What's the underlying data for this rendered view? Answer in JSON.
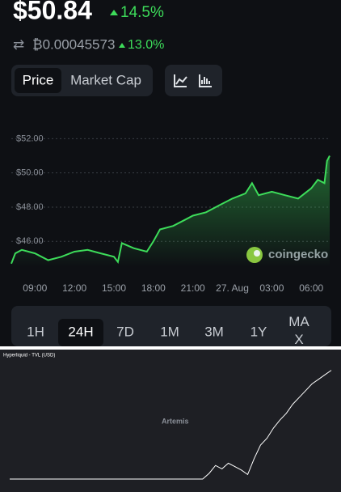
{
  "header": {
    "price": "$50.84",
    "change": "14.5%",
    "btc_price": "₿0.00045573",
    "btc_change": "13.0%"
  },
  "tabs": [
    "Price",
    "Market Cap"
  ],
  "ranges": [
    "1H",
    "24H",
    "7D",
    "1M",
    "3M",
    "1Y",
    "MA X"
  ],
  "watermark": "coingecko",
  "chart_data": [
    {
      "type": "line",
      "color": "#3ddc5a",
      "x": [
        7.2,
        7.5,
        8,
        9,
        10,
        11,
        12,
        13,
        14,
        15,
        15.3,
        15.6,
        16.5,
        17.5,
        18,
        18.5,
        19.5,
        20.5,
        21,
        22,
        23,
        24,
        25,
        25.5,
        26,
        27,
        28,
        29,
        30,
        30.5,
        31,
        31.2,
        31.4
      ],
      "values": [
        44.7,
        45.3,
        45.5,
        45.3,
        44.9,
        45.1,
        45.4,
        45.5,
        45.3,
        45.1,
        44.8,
        45.9,
        45.6,
        45.4,
        46.0,
        46.7,
        46.9,
        47.3,
        47.5,
        47.7,
        48.1,
        48.5,
        48.8,
        49.4,
        48.7,
        48.9,
        48.7,
        48.5,
        49.1,
        49.6,
        49.4,
        50.7,
        51.0
      ],
      "xlim": [
        7.2,
        31.4
      ],
      "ylim": [
        44.5,
        52.3
      ],
      "xticks": [
        {
          "value": 9,
          "label": "09:00"
        },
        {
          "value": 12,
          "label": "12:00"
        },
        {
          "value": 15,
          "label": "15:00"
        },
        {
          "value": 18,
          "label": "18:00"
        },
        {
          "value": 21,
          "label": "21:00"
        },
        {
          "value": 24,
          "label": "27. Aug"
        },
        {
          "value": 27,
          "label": "03:00"
        },
        {
          "value": 30,
          "label": "06:00"
        }
      ],
      "yticks": [
        {
          "value": 46,
          "label": "$46.00"
        },
        {
          "value": 48,
          "label": "$48.00"
        },
        {
          "value": 50,
          "label": "$50.00"
        },
        {
          "value": 52,
          "label": "$52.00"
        }
      ],
      "grid": true
    },
    {
      "type": "line",
      "title": "Hyperliquid - TVL (USD)",
      "watermark": "Artemis",
      "color": "#ffffff",
      "x": [
        0,
        10,
        20,
        30,
        40,
        50,
        60,
        62,
        64,
        66,
        68,
        70,
        72,
        74,
        76,
        78,
        80,
        82,
        84,
        86,
        88,
        90,
        92,
        94,
        96,
        98,
        100
      ],
      "values": [
        0,
        0,
        0,
        0,
        0,
        0,
        0,
        5,
        12,
        9,
        14,
        11,
        8,
        4,
        18,
        30,
        36,
        45,
        52,
        58,
        66,
        72,
        78,
        84,
        88,
        92,
        96
      ],
      "xlim": [
        0,
        100
      ],
      "ylim": [
        0,
        100
      ]
    }
  ]
}
